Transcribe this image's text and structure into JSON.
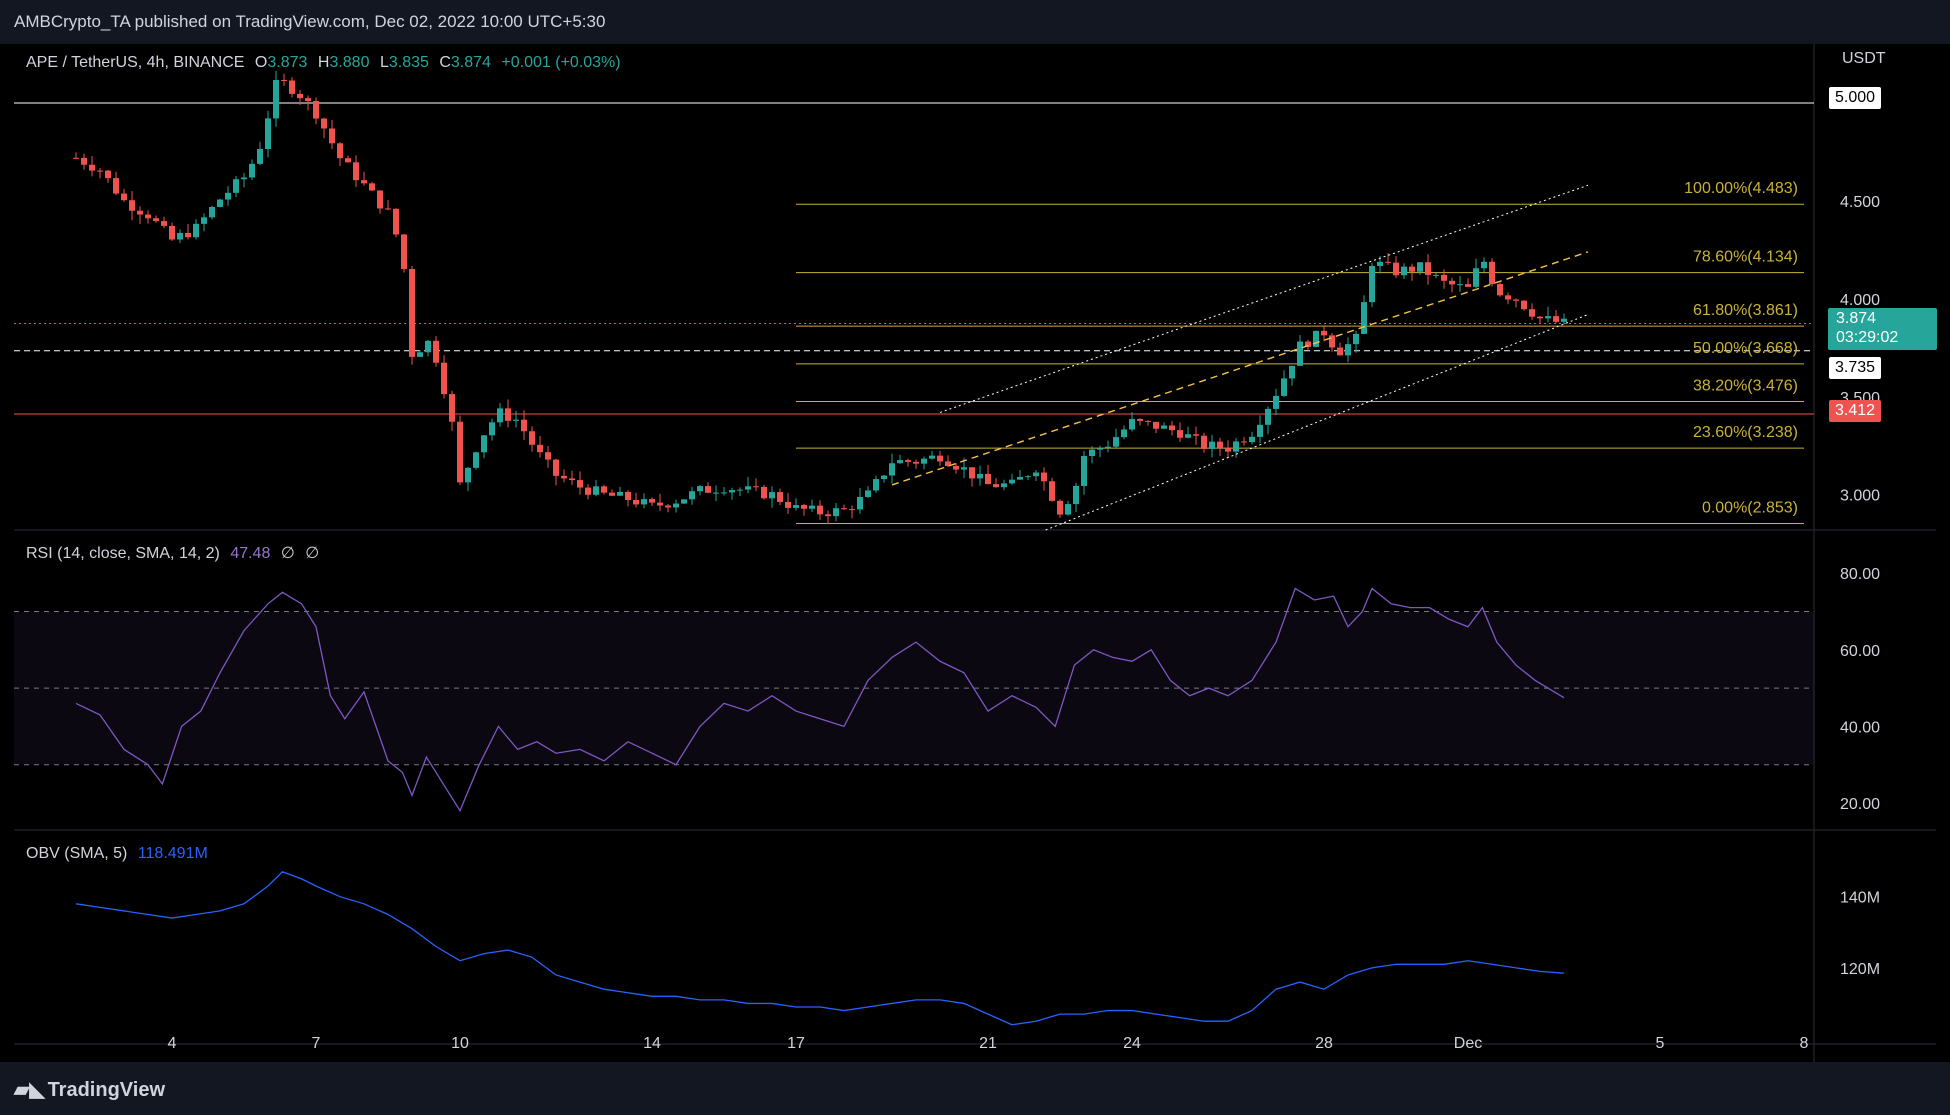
{
  "header": {
    "publisher_text": "AMBCrypto_TA published on TradingView.com, Dec 02, 2022 10:00 UTC+5:30"
  },
  "legend": {
    "symbol": "APE / TetherUS, 4h, BINANCE",
    "open_label": "O",
    "open": "3.873",
    "high_label": "H",
    "high": "3.880",
    "low_label": "L",
    "low": "3.835",
    "close_label": "C",
    "close": "3.874",
    "change": "+0.001 (+0.03%)",
    "hide_icon": "eye-icon"
  },
  "rsi_legend": {
    "label": "RSI (14, close, SMA, 14, 2)",
    "value": "47.48",
    "extra1": "∅",
    "extra2": "∅"
  },
  "obv_legend": {
    "label": "OBV (SMA, 5)",
    "value": "118.491M"
  },
  "price_axis": {
    "currency": "USDT",
    "ticks": [
      "4.500",
      "4.000",
      "3.500",
      "3.000"
    ],
    "level_tag_white": "5.000",
    "current_price": "3.874",
    "countdown": "03:29:02",
    "tag_dashed": "3.735",
    "tag_red": "3.412"
  },
  "rsi_axis": {
    "ticks": [
      "80.00",
      "60.00",
      "40.00",
      "20.00"
    ]
  },
  "obv_axis": {
    "ticks": [
      "140M",
      "120M"
    ]
  },
  "time_axis": {
    "labels": [
      "4",
      "7",
      "10",
      "14",
      "17",
      "21",
      "24",
      "28",
      "Dec",
      "5",
      "8"
    ]
  },
  "fib_labels": [
    "100.00%(4.483)",
    "78.60%(4.134)",
    "61.80%(3.861)",
    "50.00%(3.668)",
    "38.20%(3.476)",
    "23.60%(3.238)",
    "0.00%(2.853)"
  ],
  "footer": {
    "brand": "TradingView",
    "logo_icon": "tradingview-logo-icon"
  },
  "colors": {
    "up": "#26a69a",
    "down": "#ef5350",
    "fib": "#c9b236",
    "rsi": "#7e57c2",
    "obv": "#2962ff",
    "channel": "#ffffff",
    "midline": "#f6c343"
  },
  "chart_data": {
    "type": "candlestick",
    "symbol": "APE / TetherUS",
    "interval": "4h",
    "exchange": "BINANCE",
    "x_dates": [
      "4",
      "7",
      "10",
      "14",
      "17",
      "21",
      "24",
      "28",
      "Dec",
      "5",
      "8"
    ],
    "price_range": [
      2.82,
      5.25
    ],
    "horizontal_levels": {
      "white_solid": 5.0,
      "white_dashed": 3.735,
      "red_solid": 3.412
    },
    "fibonacci": [
      {
        "ratio": "100.00%",
        "price": 4.483
      },
      {
        "ratio": "78.60%",
        "price": 4.134
      },
      {
        "ratio": "61.80%",
        "price": 3.861
      },
      {
        "ratio": "50.00%",
        "price": 3.668
      },
      {
        "ratio": "38.20%",
        "price": 3.476
      },
      {
        "ratio": "23.60%",
        "price": 3.238
      },
      {
        "ratio": "0.00%",
        "price": 2.853
      }
    ],
    "close_path": [
      [
        2.0,
        4.72
      ],
      [
        2.5,
        4.66
      ],
      [
        3.0,
        4.5
      ],
      [
        3.5,
        4.43
      ],
      [
        4.0,
        4.3
      ],
      [
        4.5,
        4.36
      ],
      [
        5.0,
        4.51
      ],
      [
        5.5,
        4.62
      ],
      [
        5.8,
        4.75
      ],
      [
        6.2,
        5.12
      ],
      [
        6.6,
        5.06
      ],
      [
        7.0,
        4.95
      ],
      [
        7.5,
        4.72
      ],
      [
        8.0,
        4.58
      ],
      [
        8.5,
        4.44
      ],
      [
        8.8,
        4.24
      ],
      [
        9.0,
        3.72
      ],
      [
        9.4,
        3.79
      ],
      [
        9.8,
        3.42
      ],
      [
        10.0,
        3.05
      ],
      [
        10.4,
        3.28
      ],
      [
        10.8,
        3.42
      ],
      [
        11.2,
        3.38
      ],
      [
        11.6,
        3.22
      ],
      [
        12.0,
        3.1
      ],
      [
        12.5,
        3.04
      ],
      [
        13.0,
        3.0
      ],
      [
        13.5,
        2.98
      ],
      [
        14.0,
        2.94
      ],
      [
        14.5,
        2.97
      ],
      [
        15.0,
        3.02
      ],
      [
        15.5,
        3.04
      ],
      [
        16.0,
        3.02
      ],
      [
        16.5,
        3.0
      ],
      [
        17.0,
        2.93
      ],
      [
        17.5,
        2.91
      ],
      [
        18.0,
        2.92
      ],
      [
        18.5,
        3.0
      ],
      [
        19.0,
        3.17
      ],
      [
        19.5,
        3.17
      ],
      [
        20.0,
        3.2
      ],
      [
        20.5,
        3.13
      ],
      [
        21.0,
        3.05
      ],
      [
        21.5,
        3.05
      ],
      [
        22.0,
        3.14
      ],
      [
        22.5,
        2.92
      ],
      [
        22.8,
        3.02
      ],
      [
        23.0,
        3.2
      ],
      [
        23.5,
        3.26
      ],
      [
        24.0,
        3.37
      ],
      [
        24.5,
        3.35
      ],
      [
        25.0,
        3.32
      ],
      [
        25.5,
        3.25
      ],
      [
        26.0,
        3.24
      ],
      [
        26.5,
        3.32
      ],
      [
        27.0,
        3.52
      ],
      [
        27.5,
        3.76
      ],
      [
        28.0,
        3.83
      ],
      [
        28.3,
        3.73
      ],
      [
        28.7,
        3.8
      ],
      [
        29.0,
        4.19
      ],
      [
        29.5,
        4.14
      ],
      [
        30.0,
        4.16
      ],
      [
        30.5,
        4.08
      ],
      [
        31.0,
        4.05
      ],
      [
        31.3,
        4.21
      ],
      [
        31.6,
        4.04
      ],
      [
        32.0,
        4.0
      ],
      [
        32.5,
        3.9
      ],
      [
        33.0,
        3.874
      ]
    ],
    "channel": {
      "upper": [
        [
          20.0,
          3.42
        ],
        [
          33.5,
          4.58
        ]
      ],
      "middle": [
        [
          19.0,
          3.05
        ],
        [
          33.5,
          4.24
        ]
      ],
      "lower": [
        [
          22.2,
          2.82
        ],
        [
          33.5,
          3.92
        ]
      ]
    },
    "rsi": {
      "params": "14, close, SMA, 14, 2",
      "last": 47.48,
      "bands": [
        70,
        50,
        30
      ],
      "range": [
        14,
        85
      ],
      "path": [
        [
          2.0,
          46
        ],
        [
          2.5,
          43
        ],
        [
          3.0,
          34
        ],
        [
          3.5,
          30
        ],
        [
          3.8,
          25
        ],
        [
          4.2,
          40
        ],
        [
          4.6,
          44
        ],
        [
          5.0,
          54
        ],
        [
          5.5,
          65
        ],
        [
          6.0,
          72
        ],
        [
          6.3,
          75
        ],
        [
          6.7,
          72
        ],
        [
          7.0,
          66
        ],
        [
          7.3,
          48
        ],
        [
          7.6,
          42
        ],
        [
          8.0,
          49
        ],
        [
          8.5,
          31
        ],
        [
          8.8,
          28
        ],
        [
          9.0,
          22
        ],
        [
          9.3,
          32
        ],
        [
          9.7,
          24
        ],
        [
          10.0,
          18
        ],
        [
          10.4,
          30
        ],
        [
          10.8,
          40
        ],
        [
          11.2,
          34
        ],
        [
          11.6,
          36
        ],
        [
          12.0,
          33
        ],
        [
          12.5,
          34
        ],
        [
          13.0,
          31
        ],
        [
          13.5,
          36
        ],
        [
          14.0,
          33
        ],
        [
          14.5,
          30
        ],
        [
          15.0,
          40
        ],
        [
          15.5,
          46
        ],
        [
          16.0,
          44
        ],
        [
          16.5,
          48
        ],
        [
          17.0,
          44
        ],
        [
          17.5,
          42
        ],
        [
          18.0,
          40
        ],
        [
          18.5,
          52
        ],
        [
          19.0,
          58
        ],
        [
          19.5,
          62
        ],
        [
          20.0,
          57
        ],
        [
          20.5,
          54
        ],
        [
          21.0,
          44
        ],
        [
          21.5,
          48
        ],
        [
          22.0,
          45
        ],
        [
          22.4,
          40
        ],
        [
          22.8,
          56
        ],
        [
          23.2,
          60
        ],
        [
          23.6,
          58
        ],
        [
          24.0,
          57
        ],
        [
          24.4,
          60
        ],
        [
          24.8,
          52
        ],
        [
          25.2,
          48
        ],
        [
          25.6,
          50
        ],
        [
          26.0,
          48
        ],
        [
          26.5,
          52
        ],
        [
          27.0,
          62
        ],
        [
          27.4,
          76
        ],
        [
          27.8,
          73
        ],
        [
          28.2,
          74
        ],
        [
          28.5,
          66
        ],
        [
          28.8,
          70
        ],
        [
          29.0,
          76
        ],
        [
          29.4,
          72
        ],
        [
          29.8,
          71
        ],
        [
          30.2,
          71
        ],
        [
          30.6,
          68
        ],
        [
          31.0,
          66
        ],
        [
          31.3,
          71
        ],
        [
          31.6,
          62
        ],
        [
          32.0,
          56
        ],
        [
          32.4,
          52
        ],
        [
          32.8,
          49
        ],
        [
          33.0,
          47.48
        ]
      ]
    },
    "obv": {
      "params": "SMA, 5",
      "last_millions": 118.491,
      "range_millions": [
        100,
        152
      ],
      "path": [
        [
          2.0,
          138
        ],
        [
          2.5,
          137
        ],
        [
          3.0,
          136
        ],
        [
          3.5,
          135
        ],
        [
          4.0,
          134
        ],
        [
          4.5,
          135
        ],
        [
          5.0,
          136
        ],
        [
          5.5,
          138
        ],
        [
          6.0,
          143
        ],
        [
          6.3,
          147
        ],
        [
          6.7,
          145
        ],
        [
          7.0,
          143
        ],
        [
          7.5,
          140
        ],
        [
          8.0,
          138
        ],
        [
          8.5,
          135
        ],
        [
          9.0,
          131
        ],
        [
          9.5,
          126
        ],
        [
          10.0,
          122
        ],
        [
          10.5,
          124
        ],
        [
          11.0,
          125
        ],
        [
          11.5,
          123
        ],
        [
          12.0,
          118
        ],
        [
          12.5,
          116
        ],
        [
          13.0,
          114
        ],
        [
          13.5,
          113
        ],
        [
          14.0,
          112
        ],
        [
          14.5,
          112
        ],
        [
          15.0,
          111
        ],
        [
          15.5,
          111
        ],
        [
          16.0,
          110
        ],
        [
          16.5,
          110
        ],
        [
          17.0,
          109
        ],
        [
          17.5,
          109
        ],
        [
          18.0,
          108
        ],
        [
          18.5,
          109
        ],
        [
          19.0,
          110
        ],
        [
          19.5,
          111
        ],
        [
          20.0,
          111
        ],
        [
          20.5,
          110
        ],
        [
          21.0,
          107
        ],
        [
          21.5,
          104
        ],
        [
          22.0,
          105
        ],
        [
          22.5,
          107
        ],
        [
          23.0,
          107
        ],
        [
          23.5,
          108
        ],
        [
          24.0,
          108
        ],
        [
          24.5,
          107
        ],
        [
          25.0,
          106
        ],
        [
          25.5,
          105
        ],
        [
          26.0,
          105
        ],
        [
          26.5,
          108
        ],
        [
          27.0,
          114
        ],
        [
          27.5,
          116
        ],
        [
          28.0,
          114
        ],
        [
          28.5,
          118
        ],
        [
          29.0,
          120
        ],
        [
          29.5,
          121
        ],
        [
          30.0,
          121
        ],
        [
          30.5,
          121
        ],
        [
          31.0,
          122
        ],
        [
          31.5,
          121
        ],
        [
          32.0,
          120
        ],
        [
          32.5,
          119
        ],
        [
          33.0,
          118.5
        ]
      ]
    }
  }
}
